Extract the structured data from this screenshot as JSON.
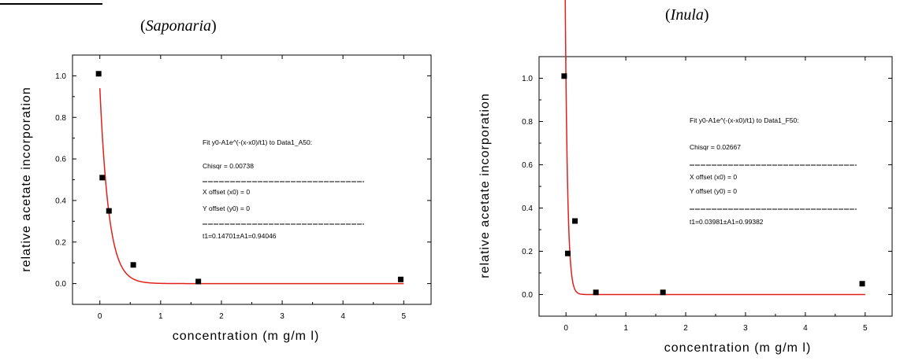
{
  "chart_data": [
    {
      "type": "scatter",
      "subtitle_open": "(",
      "subtitle_name": "Saponaria",
      "subtitle_close": ")",
      "xlabel": "concentration (m g/m l)",
      "ylabel": "relative acetate incorporation",
      "xlim": [
        -0.45,
        5.45
      ],
      "ylim": [
        -0.1,
        1.1
      ],
      "x_ticks": [
        0,
        1,
        2,
        3,
        4,
        5
      ],
      "x_tick_labels": [
        "0",
        "1",
        "2",
        "3",
        "4",
        "5"
      ],
      "y_ticks": [
        0.0,
        0.2,
        0.4,
        0.6,
        0.8,
        1.0
      ],
      "y_tick_labels": [
        "0.0",
        "0.2",
        "0.4",
        "0.6",
        "0.8",
        "1.0"
      ],
      "points": [
        {
          "x": -0.02,
          "y": 1.01
        },
        {
          "x": 0.04,
          "y": 0.51
        },
        {
          "x": 0.15,
          "y": 0.35
        },
        {
          "x": 0.55,
          "y": 0.09
        },
        {
          "x": 1.62,
          "y": 0.01
        },
        {
          "x": 4.95,
          "y": 0.02
        }
      ],
      "fit": {
        "model": "exponential decay",
        "A1": 0.94046,
        "t1": 0.14701,
        "x0": 0,
        "y0": 0,
        "x_start": 0.0,
        "color": "#e0201b"
      },
      "annotation_lines": [
        "Fit y0-A1e^(-(x-x0)/t1) to Data1_A50:",
        "Chisqr = 0.00738",
        "X offset (x0) = 0",
        "Y offset (y0) = 0",
        "t1=0.14701±A1=0.94046"
      ],
      "marker_color": "#000000"
    },
    {
      "type": "scatter",
      "subtitle_open": "(",
      "subtitle_name": "Inula",
      "subtitle_close": ")",
      "xlabel": "concentration (m g/m l)",
      "ylabel": "relative acetate incorporation",
      "xlim": [
        -0.45,
        5.45
      ],
      "ylim": [
        -0.1,
        1.1
      ],
      "x_ticks": [
        0,
        1,
        2,
        3,
        4,
        5
      ],
      "x_tick_labels": [
        "0",
        "1",
        "2",
        "3",
        "4",
        "5"
      ],
      "y_ticks": [
        0.0,
        0.2,
        0.4,
        0.6,
        0.8,
        1.0
      ],
      "y_tick_labels": [
        "0.0",
        "0.2",
        "0.4",
        "0.6",
        "0.8",
        "1.0"
      ],
      "points": [
        {
          "x": -0.03,
          "y": 1.01
        },
        {
          "x": 0.03,
          "y": 0.19
        },
        {
          "x": 0.15,
          "y": 0.34
        },
        {
          "x": 0.5,
          "y": 0.01
        },
        {
          "x": 1.62,
          "y": 0.01
        },
        {
          "x": 4.95,
          "y": 0.05
        }
      ],
      "fit": {
        "model": "exponential decay",
        "A1": 0.99382,
        "t1": 0.03981,
        "x0": 0,
        "y0": 0,
        "x_start": -0.02,
        "color": "#e0201b"
      },
      "annotation_lines": [
        "Fit y0-A1e^(-(x-x0)/t1) to Data1_F50:",
        "Chisqr = 0.02667",
        "X offset (x0) = 0",
        "Y offset (y0) = 0",
        "t1=0.03981±A1=0.99382"
      ],
      "marker_color": "#000000"
    }
  ]
}
